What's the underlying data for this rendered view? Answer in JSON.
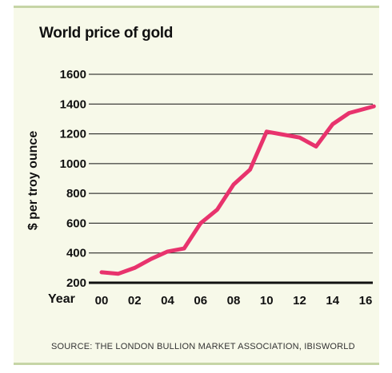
{
  "chart_data": {
    "type": "line",
    "title": "World price of gold",
    "ylabel": "$ per troy ounce",
    "xlabel": "Year",
    "source": "SOURCE: THE LONDON BULLION MARKET ASSOCIATION, IBISWORLD",
    "ylim": [
      200,
      1600
    ],
    "yticks": [
      200,
      400,
      600,
      800,
      1000,
      1200,
      1400,
      1600
    ],
    "xlim": [
      2000,
      2016
    ],
    "xticks": [
      {
        "value": 2000,
        "label": "00"
      },
      {
        "value": 2002,
        "label": "02"
      },
      {
        "value": 2004,
        "label": "04"
      },
      {
        "value": 2006,
        "label": "06"
      },
      {
        "value": 2008,
        "label": "08"
      },
      {
        "value": 2010,
        "label": "10"
      },
      {
        "value": 2012,
        "label": "12"
      },
      {
        "value": 2014,
        "label": "14"
      },
      {
        "value": 2016,
        "label": "16"
      }
    ],
    "grid": true,
    "series": [
      {
        "color": "#e8336d",
        "x": [
          2000,
          2001,
          2002,
          2003,
          2004,
          2005,
          2006,
          2007,
          2008,
          2009,
          2010,
          2011,
          2012,
          2013,
          2014,
          2015,
          2016.5
        ],
        "values": [
          270,
          260,
          300,
          360,
          410,
          430,
          600,
          690,
          860,
          960,
          1215,
          1195,
          1175,
          1115,
          1265,
          1340,
          1385
        ]
      }
    ]
  }
}
